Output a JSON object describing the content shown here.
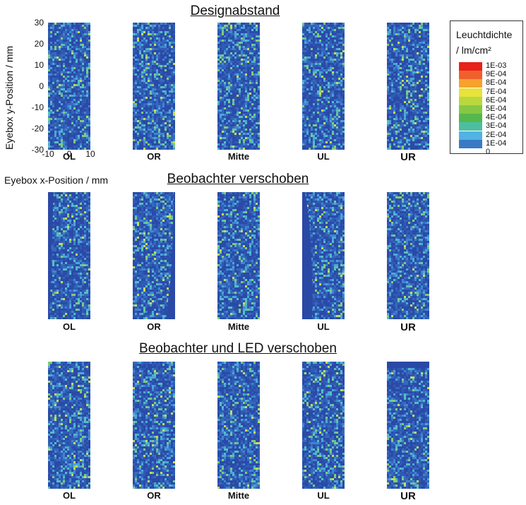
{
  "chart_data": {
    "type": "heatmap",
    "sections": [
      {
        "title": "Designabstand",
        "panels": [
          "OL",
          "OR",
          "Mitte",
          "UL",
          "UR"
        ],
        "shadow": [
          null,
          null,
          null,
          null,
          null
        ]
      },
      {
        "title": "Beobachter verschoben",
        "panels": [
          "OL",
          "OR",
          "Mitte",
          "UL",
          "UR"
        ],
        "shadow": [
          "left",
          "right",
          null,
          "left-wedge",
          null
        ]
      },
      {
        "title": "Beobachter und LED verschoben",
        "panels": [
          "OL",
          "OR",
          "Mitte",
          "UL",
          "UR"
        ],
        "shadow": [
          null,
          null,
          null,
          null,
          "top"
        ]
      }
    ],
    "xlabel": "Eyebox x-Position / mm",
    "ylabel": "Eyebox y-Position / mm",
    "xlim": [
      -10,
      10
    ],
    "ylim": [
      -30,
      30
    ],
    "xticks": [
      "-10",
      "0",
      "10"
    ],
    "yticks": [
      "30",
      "20",
      "10",
      "0",
      "-10",
      "-20",
      "-30"
    ],
    "colorbar": {
      "title_line1": "Leuchtdichte",
      "title_line2": "/ lm/cm²",
      "labels": [
        "1E-03",
        "9E-04",
        "8E-04",
        "7E-04",
        "6E-04",
        "5E-04",
        "4E-04",
        "3E-04",
        "2E-04",
        "1E-04",
        "0"
      ],
      "colors": [
        "#e8211b",
        "#f0602a",
        "#f7a12e",
        "#e9e23a",
        "#b9d83e",
        "#86c843",
        "#54b84e",
        "#4cbfa1",
        "#52b2e3",
        "#3a7ac5",
        "#2b4aa8"
      ]
    }
  }
}
